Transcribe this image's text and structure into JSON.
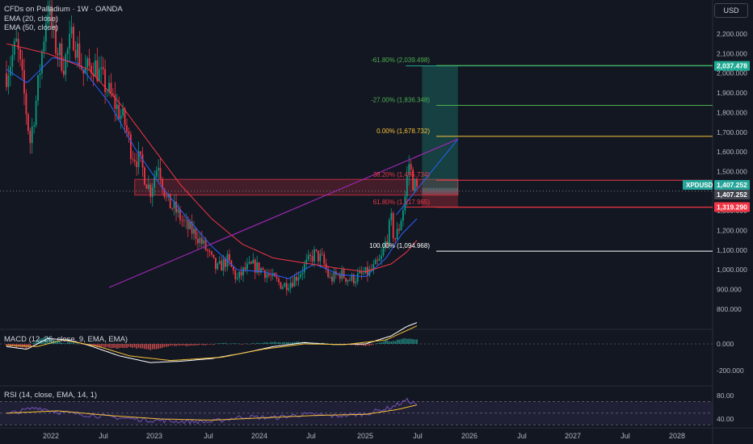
{
  "header": {
    "symbol_line": "CFDs on Palladium · 1W · OANDA",
    "ema20_label": "EMA (20, close)",
    "ema50_label": "EMA (50, close)",
    "currency_button": "USD"
  },
  "price_axis": {
    "ticks": [
      "2,200.000",
      "2,100.000",
      "2,000.000",
      "1,900.000",
      "1,800.000",
      "1,700.000",
      "1,600.000",
      "1,500.000",
      "1,400.000",
      "1,300.000",
      "1,200.000",
      "1,100.000",
      "1,000.000",
      "900.000",
      "800.000"
    ],
    "tick_values": [
      2200,
      2100,
      2000,
      1900,
      1800,
      1700,
      1600,
      1500,
      1400,
      1300,
      1200,
      1100,
      1000,
      900,
      800
    ],
    "badges": {
      "target": {
        "text": "2,037.478",
        "value": 2037.478,
        "color": "#22ab94"
      },
      "symbol": {
        "text": "XPDUSD",
        "color": "#26a69a"
      },
      "last": {
        "text": "1,407.252",
        "value": 1407.252,
        "color": "#26a69a"
      },
      "last_gray": {
        "text": "1,407.252",
        "color": "#434651"
      },
      "stop": {
        "text": "1,319.290",
        "value": 1319.29,
        "color": "#f23645"
      }
    }
  },
  "fib_levels": [
    {
      "text": "-61.80% (2,039.498)",
      "value": 2039.498,
      "color": "#4caf50"
    },
    {
      "text": "-27.00% (1,836.348)",
      "value": 1836.348,
      "color": "#4caf50"
    },
    {
      "text": "0.00% (1,678.732)",
      "value": 1678.732,
      "color": "#f7c137"
    },
    {
      "text": "38.20% (1,455.734)",
      "value": 1455.734,
      "color": "#f23645"
    },
    {
      "text": "61.80% (1,317.965)",
      "value": 1317.965,
      "color": "#f23645"
    },
    {
      "text": "100.00% (1,094.968)",
      "value": 1094.968,
      "color": "#ffffff"
    }
  ],
  "time_axis": {
    "labels": [
      "2022",
      "Jul",
      "2023",
      "Jul",
      "2024",
      "Jul",
      "2025",
      "Jul",
      "2026",
      "Jul",
      "2027",
      "Jul",
      "2028"
    ]
  },
  "macd": {
    "label": "MACD (12, 26, close, 9, EMA, EMA)",
    "ticks": [
      "0.000",
      "-200.000"
    ],
    "tick_values": [
      0,
      -200
    ]
  },
  "rsi": {
    "label": "RSI (14, close, EMA, 14, 1)",
    "ticks": [
      "80.00",
      "40.00"
    ],
    "tick_values": [
      80,
      40
    ]
  },
  "chart_data": {
    "type": "candlestick",
    "title": "CFDs on Palladium · 1W · OANDA",
    "y_range": [
      760,
      2290
    ],
    "price_anchors": [
      {
        "t": 2021.8,
        "p": 2000
      },
      {
        "t": 2021.9,
        "p": 2150
      },
      {
        "t": 2021.97,
        "p": 1900
      },
      {
        "t": 2022.03,
        "p": 1650
      },
      {
        "t": 2022.1,
        "p": 1900
      },
      {
        "t": 2022.2,
        "p": 2350
      },
      {
        "t": 2022.27,
        "p": 2150
      },
      {
        "t": 2022.36,
        "p": 2050
      },
      {
        "t": 2022.45,
        "p": 2200
      },
      {
        "t": 2022.55,
        "p": 2000
      },
      {
        "t": 2022.65,
        "p": 2050
      },
      {
        "t": 2022.75,
        "p": 1950
      },
      {
        "t": 2022.85,
        "p": 1850
      },
      {
        "t": 2022.95,
        "p": 1750
      },
      {
        "t": 2023.02,
        "p": 1600
      },
      {
        "t": 2023.1,
        "p": 1550
      },
      {
        "t": 2023.2,
        "p": 1400
      },
      {
        "t": 2023.28,
        "p": 1550
      },
      {
        "t": 2023.36,
        "p": 1350
      },
      {
        "t": 2023.45,
        "p": 1300
      },
      {
        "t": 2023.55,
        "p": 1220
      },
      {
        "t": 2023.65,
        "p": 1180
      },
      {
        "t": 2023.75,
        "p": 1100
      },
      {
        "t": 2023.85,
        "p": 1000
      },
      {
        "t": 2023.95,
        "p": 1050
      },
      {
        "t": 2024.05,
        "p": 950
      },
      {
        "t": 2024.12,
        "p": 1000
      },
      {
        "t": 2024.2,
        "p": 1020
      },
      {
        "t": 2024.3,
        "p": 1000
      },
      {
        "t": 2024.4,
        "p": 950
      },
      {
        "t": 2024.5,
        "p": 920
      },
      {
        "t": 2024.6,
        "p": 950
      },
      {
        "t": 2024.68,
        "p": 1000
      },
      {
        "t": 2024.8,
        "p": 1080
      },
      {
        "t": 2024.88,
        "p": 1050
      },
      {
        "t": 2024.95,
        "p": 950
      },
      {
        "t": 2025.05,
        "p": 980
      },
      {
        "t": 2025.15,
        "p": 950
      },
      {
        "t": 2025.25,
        "p": 970
      },
      {
        "t": 2025.35,
        "p": 990
      },
      {
        "t": 2025.45,
        "p": 1050
      },
      {
        "t": 2025.5,
        "p": 1150
      },
      {
        "t": 2025.55,
        "p": 1250
      },
      {
        "t": 2025.58,
        "p": 1150
      },
      {
        "t": 2025.62,
        "p": 1200
      },
      {
        "t": 2025.68,
        "p": 1350
      },
      {
        "t": 2025.72,
        "p": 1550
      },
      {
        "t": 2025.76,
        "p": 1450
      },
      {
        "t": 2025.8,
        "p": 1407
      }
    ],
    "ema_20_anchors": [
      {
        "t": 2021.8,
        "p": 2020
      },
      {
        "t": 2022.0,
        "p": 1950
      },
      {
        "t": 2022.25,
        "p": 2080
      },
      {
        "t": 2022.5,
        "p": 2050
      },
      {
        "t": 2022.8,
        "p": 1850
      },
      {
        "t": 2023.05,
        "p": 1620
      },
      {
        "t": 2023.3,
        "p": 1430
      },
      {
        "t": 2023.55,
        "p": 1270
      },
      {
        "t": 2023.8,
        "p": 1120
      },
      {
        "t": 2024.05,
        "p": 1000
      },
      {
        "t": 2024.3,
        "p": 990
      },
      {
        "t": 2024.55,
        "p": 955
      },
      {
        "t": 2024.8,
        "p": 1030
      },
      {
        "t": 2025.05,
        "p": 975
      },
      {
        "t": 2025.3,
        "p": 965
      },
      {
        "t": 2025.5,
        "p": 1060
      },
      {
        "t": 2025.65,
        "p": 1180
      },
      {
        "t": 2025.8,
        "p": 1260
      }
    ],
    "ema_50_anchors": [
      {
        "t": 2021.8,
        "p": 2150
      },
      {
        "t": 2022.2,
        "p": 2100
      },
      {
        "t": 2022.6,
        "p": 2020
      },
      {
        "t": 2022.9,
        "p": 1850
      },
      {
        "t": 2023.2,
        "p": 1640
      },
      {
        "t": 2023.5,
        "p": 1430
      },
      {
        "t": 2023.8,
        "p": 1260
      },
      {
        "t": 2024.1,
        "p": 1130
      },
      {
        "t": 2024.4,
        "p": 1060
      },
      {
        "t": 2024.7,
        "p": 1035
      },
      {
        "t": 2025.0,
        "p": 1010
      },
      {
        "t": 2025.3,
        "p": 990
      },
      {
        "t": 2025.55,
        "p": 1030
      },
      {
        "t": 2025.7,
        "p": 1090
      },
      {
        "t": 2025.8,
        "p": 1150
      }
    ],
    "trendline": {
      "from": {
        "t": 2022.8,
        "p": 910
      },
      "to": {
        "t": 2026.2,
        "p": 1665
      },
      "color": "#9c27b0"
    },
    "trendline_2": {
      "from": {
        "t": 2025.6,
        "p": 1280
      },
      "to": {
        "t": 2026.2,
        "p": 1665
      },
      "color": "#2962ff"
    },
    "position_tool": {
      "t_start": 2025.85,
      "t_end": 2026.2,
      "entry": 1400,
      "target": 2037.478,
      "stop": 1319.29,
      "profit_color": "#22ab94",
      "loss_color": "#f23645"
    },
    "resistance_zone": {
      "t_start": 2023.05,
      "t_end": 2026.2,
      "top": 1460,
      "bottom": 1380,
      "color": "#f23645"
    },
    "rsi_range": [
      20,
      90
    ],
    "rsi_anchors": [
      {
        "t": 2021.8,
        "p": 48
      },
      {
        "t": 2022.1,
        "p": 60
      },
      {
        "t": 2022.3,
        "p": 52
      },
      {
        "t": 2022.6,
        "p": 47
      },
      {
        "t": 2022.9,
        "p": 42
      },
      {
        "t": 2023.2,
        "p": 38
      },
      {
        "t": 2023.5,
        "p": 36
      },
      {
        "t": 2023.8,
        "p": 35
      },
      {
        "t": 2024.1,
        "p": 44
      },
      {
        "t": 2024.4,
        "p": 42
      },
      {
        "t": 2024.7,
        "p": 48
      },
      {
        "t": 2025.0,
        "p": 45
      },
      {
        "t": 2025.3,
        "p": 49
      },
      {
        "t": 2025.55,
        "p": 60
      },
      {
        "t": 2025.7,
        "p": 72
      },
      {
        "t": 2025.8,
        "p": 66
      }
    ],
    "rsi_ma_anchors": [
      {
        "t": 2021.8,
        "p": 50
      },
      {
        "t": 2022.3,
        "p": 54
      },
      {
        "t": 2022.8,
        "p": 46
      },
      {
        "t": 2023.3,
        "p": 40
      },
      {
        "t": 2023.8,
        "p": 38
      },
      {
        "t": 2024.3,
        "p": 42
      },
      {
        "t": 2024.8,
        "p": 46
      },
      {
        "t": 2025.3,
        "p": 48
      },
      {
        "t": 2025.6,
        "p": 56
      },
      {
        "t": 2025.8,
        "p": 64
      }
    ],
    "macd_range": [
      -280,
      200
    ],
    "macd_anchors": [
      {
        "t": 2021.8,
        "p": -20
      },
      {
        "t": 2022.0,
        "p": -40
      },
      {
        "t": 2022.2,
        "p": 40
      },
      {
        "t": 2022.4,
        "p": 30
      },
      {
        "t": 2022.6,
        "p": -10
      },
      {
        "t": 2022.9,
        "p": -90
      },
      {
        "t": 2023.2,
        "p": -140
      },
      {
        "t": 2023.5,
        "p": -130
      },
      {
        "t": 2023.8,
        "p": -110
      },
      {
        "t": 2024.1,
        "p": -70
      },
      {
        "t": 2024.4,
        "p": -20
      },
      {
        "t": 2024.7,
        "p": 10
      },
      {
        "t": 2025.0,
        "p": -5
      },
      {
        "t": 2025.3,
        "p": 0
      },
      {
        "t": 2025.55,
        "p": 60
      },
      {
        "t": 2025.7,
        "p": 130
      },
      {
        "t": 2025.8,
        "p": 160
      }
    ],
    "macd_signal_anchors": [
      {
        "t": 2021.8,
        "p": -10
      },
      {
        "t": 2022.1,
        "p": -20
      },
      {
        "t": 2022.35,
        "p": 30
      },
      {
        "t": 2022.7,
        "p": -20
      },
      {
        "t": 2023.0,
        "p": -90
      },
      {
        "t": 2023.4,
        "p": -125
      },
      {
        "t": 2023.9,
        "p": -100
      },
      {
        "t": 2024.3,
        "p": -40
      },
      {
        "t": 2024.7,
        "p": 0
      },
      {
        "t": 2025.1,
        "p": -5
      },
      {
        "t": 2025.5,
        "p": 30
      },
      {
        "t": 2025.8,
        "p": 135
      }
    ]
  }
}
